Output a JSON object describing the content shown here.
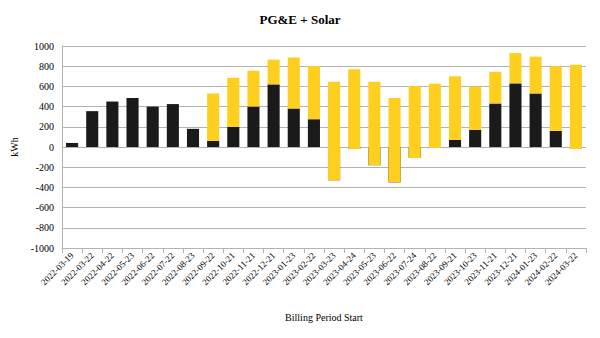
{
  "chart_data": {
    "type": "bar",
    "title": "PG&E + Solar",
    "x_label": "Billing Period Start",
    "y_label": "kWh",
    "categories": [
      "2022-03-19",
      "2022-03-22",
      "2022-04-22",
      "2022-05-23",
      "2022-06-22",
      "2022-07-22",
      "2022-08-23",
      "2022-09-22",
      "2022-10-21",
      "2022-11-21",
      "2022-12-21",
      "2023-01-23",
      "2023-02-22",
      "2023-03-23",
      "2023-04-24",
      "2023-05-23",
      "2023-06-22",
      "2023-07-24",
      "2023-08-22",
      "2023-09-21",
      "2023-10-23",
      "2023-11-21",
      "2023-12-21",
      "2024-01-23",
      "2024-02-22",
      "2024-03-22"
    ],
    "series": [
      {
        "color": "#1a1a1a",
        "values": [
          40,
          355,
          450,
          485,
          400,
          425,
          180,
          60,
          200,
          400,
          620,
          380,
          275,
          -330,
          -20,
          -180,
          -350,
          -110,
          -10,
          70,
          170,
          430,
          630,
          530,
          160,
          -20
        ]
      },
      {
        "color": "#ffcf20",
        "values": [
          null,
          null,
          null,
          null,
          null,
          null,
          null,
          470,
          485,
          355,
          245,
          505,
          525,
          975,
          790,
          825,
          835,
          715,
          635,
          630,
          430,
          315,
          300,
          365,
          640,
          835
        ]
      }
    ],
    "stacked": true,
    "ylim": [
      -1000,
      1000
    ],
    "yticks": [
      -1000,
      -800,
      -600,
      -400,
      -200,
      0,
      200,
      400,
      600,
      800,
      1000
    ],
    "grid": true
  }
}
